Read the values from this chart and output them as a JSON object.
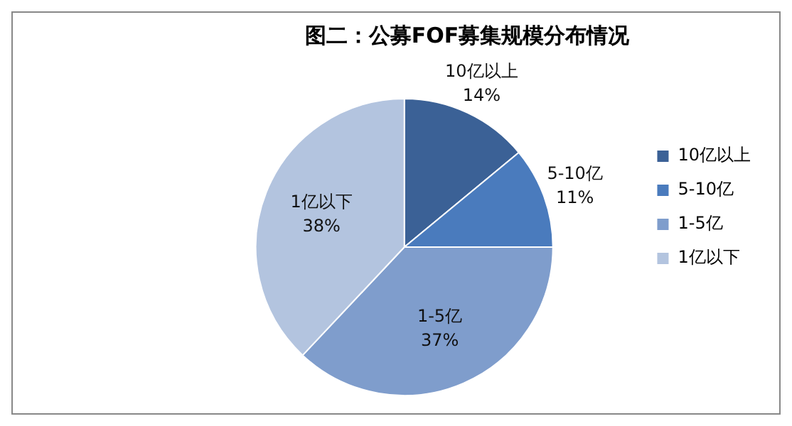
{
  "chart_data": {
    "type": "pie",
    "title": "图二：公募FOF募集规模分布情况",
    "categories": [
      "10亿以上",
      "5-10亿",
      "1-5亿",
      "1亿以下"
    ],
    "values": [
      14,
      11,
      37,
      38
    ],
    "colors": [
      "#3b6196",
      "#4a7bbd",
      "#7f9dcc",
      "#b3c4df"
    ],
    "value_labels": [
      "14%",
      "11%",
      "37%",
      "38%"
    ],
    "legend": "right"
  }
}
